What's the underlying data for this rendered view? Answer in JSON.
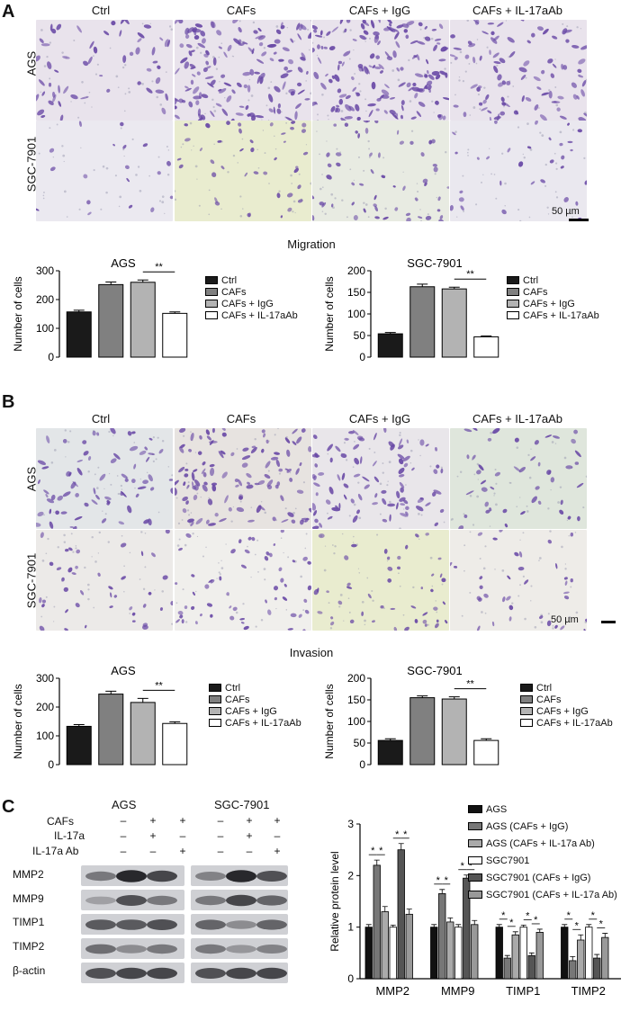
{
  "panels": {
    "A": {
      "letter": "A",
      "columns": [
        "Ctrl",
        "CAFs",
        "CAFs + IgG",
        "CAFs + IL-17aAb"
      ],
      "rows": [
        "AGS",
        "SGC-7901"
      ],
      "scale_bar": "50 µm",
      "section_title": "Migration",
      "charts": [
        {
          "type": "bar",
          "title": "AGS",
          "ylabel": "Number of cells",
          "categories": [
            "Ctrl",
            "CAFs",
            "CAFs + IgG",
            "CAFs + IL-17aAb"
          ],
          "values": [
            157,
            252,
            260,
            152
          ],
          "errors": [
            6,
            9,
            8,
            5
          ],
          "ylim": [
            0,
            300
          ],
          "yticks": [
            0,
            100,
            200,
            300
          ],
          "significance": "**"
        },
        {
          "type": "bar",
          "title": "SGC-7901",
          "ylabel": "Number of cells",
          "categories": [
            "Ctrl",
            "CAFs",
            "CAFs + IgG",
            "CAFs + IL-17aAb"
          ],
          "values": [
            54,
            163,
            158,
            47
          ],
          "errors": [
            3,
            6,
            4,
            2
          ],
          "ylim": [
            0,
            200
          ],
          "yticks": [
            0,
            50,
            100,
            150,
            200
          ],
          "significance": "**"
        }
      ]
    },
    "B": {
      "letter": "B",
      "columns": [
        "Ctrl",
        "CAFs",
        "CAFs + IgG",
        "CAFs + IL-17aAb"
      ],
      "rows": [
        "AGS",
        "SGC-7901"
      ],
      "scale_bar": "50 µm",
      "section_title": "Invasion",
      "charts": [
        {
          "type": "bar",
          "title": "AGS",
          "ylabel": "Number of cells",
          "categories": [
            "Ctrl",
            "CAFs",
            "CAFs + IgG",
            "CAFs + IL-17aAb"
          ],
          "values": [
            133,
            245,
            216,
            143
          ],
          "errors": [
            6,
            10,
            14,
            6
          ],
          "ylim": [
            0,
            300
          ],
          "yticks": [
            0,
            100,
            200,
            300
          ],
          "significance": "**"
        },
        {
          "type": "bar",
          "title": "SGC-7901",
          "ylabel": "Number of cells",
          "categories": [
            "Ctrl",
            "CAFs",
            "CAFs + IgG",
            "CAFs + IL-17aAb"
          ],
          "values": [
            56,
            155,
            152,
            56
          ],
          "errors": [
            4,
            4,
            5,
            4
          ],
          "ylim": [
            0,
            200
          ],
          "yticks": [
            0,
            50,
            100,
            150,
            200
          ],
          "significance": "**"
        }
      ]
    },
    "C": {
      "letter": "C",
      "groups": [
        "AGS",
        "SGC-7901"
      ],
      "treatments": [
        {
          "label": "CAFs",
          "signs": [
            "–",
            "+",
            "+",
            "–",
            "+",
            "+"
          ]
        },
        {
          "label": "IL-17a",
          "signs": [
            "–",
            "+",
            "–",
            "–",
            "+",
            "–"
          ]
        },
        {
          "label": "IL-17a Ab",
          "signs": [
            "–",
            "–",
            "+",
            "–",
            "–",
            "+"
          ]
        }
      ],
      "blots": [
        "MMP2",
        "MMP9",
        "TIMP1",
        "TIMP2",
        "β-actin"
      ],
      "chart_data": {
        "type": "bar",
        "ylabel": "Relative protein level",
        "categories": [
          "MMP2",
          "MMP9",
          "TIMP1",
          "TIMP2"
        ],
        "ylim": [
          0,
          3
        ],
        "yticks": [
          0,
          1,
          2,
          3
        ],
        "series": [
          {
            "name": "AGS",
            "values": [
              1.0,
              1.0,
              1.0,
              1.0
            ],
            "errors": [
              0.05,
              0.05,
              0.05,
              0.05
            ]
          },
          {
            "name": "AGS (CAFs + IgG)",
            "values": [
              2.2,
              1.65,
              0.4,
              0.35
            ],
            "errors": [
              0.1,
              0.08,
              0.05,
              0.08
            ]
          },
          {
            "name": "AGS (CAFs + IL-17a Ab)",
            "values": [
              1.3,
              1.1,
              0.85,
              0.75
            ],
            "errors": [
              0.1,
              0.08,
              0.06,
              0.1
            ]
          },
          {
            "name": "SGC7901",
            "values": [
              1.0,
              1.0,
              1.0,
              1.0
            ],
            "errors": [
              0.04,
              0.05,
              0.04,
              0.05
            ]
          },
          {
            "name": "SGC7901 (CAFs + IgG)",
            "values": [
              2.5,
              1.95,
              0.45,
              0.4
            ],
            "errors": [
              0.12,
              0.06,
              0.05,
              0.07
            ]
          },
          {
            "name": "SGC7901 (CAFs + IL-17a Ab)",
            "values": [
              1.25,
              1.05,
              0.9,
              0.8
            ],
            "errors": [
              0.1,
              0.08,
              0.06,
              0.08
            ]
          }
        ],
        "significance": "*"
      }
    }
  },
  "colors": {
    "bar_fills": [
      "#1a1a1a",
      "#808080",
      "#b3b3b3",
      "#ffffff"
    ],
    "c_fills": [
      "#111111",
      "#777777",
      "#aaaaaa",
      "#ffffff",
      "#555555",
      "#999999"
    ],
    "micro_bg_purple": "#e9e3ec",
    "micro_bg_yellow": "#e9eccf",
    "cell_color": "#6a4aa6"
  }
}
